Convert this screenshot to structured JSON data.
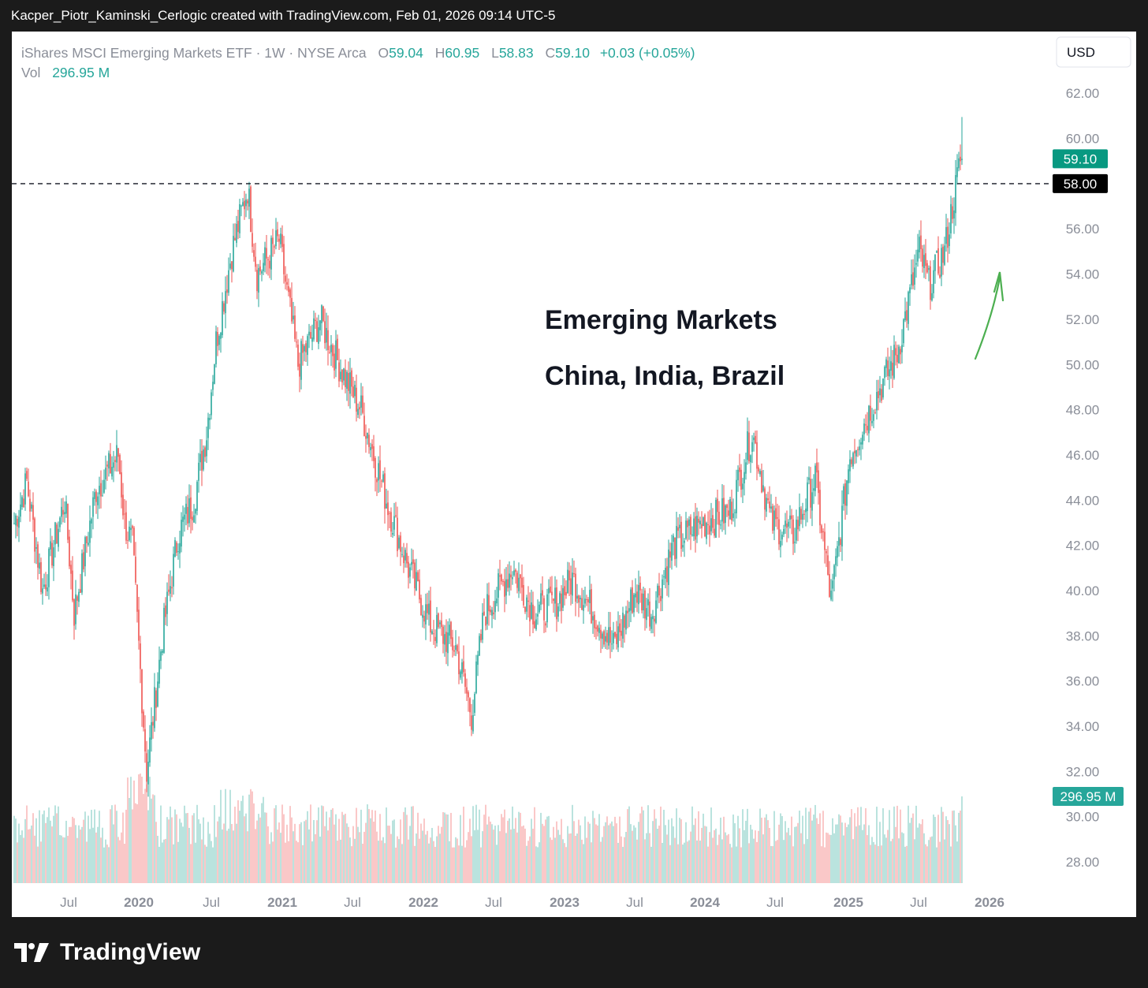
{
  "header": {
    "caption": "Kacper_Piotr_Kaminski_Cerlogic created with TradingView.com, Feb 01, 2026 09:14 UTC-5"
  },
  "legend": {
    "symbol": "iShares MSCI Emerging Markets ETF · 1W · NYSE Arca",
    "o_label": "O",
    "o_value": "59.04",
    "h_label": "H",
    "h_value": "60.95",
    "l_label": "L",
    "l_value": "58.83",
    "c_label": "C",
    "c_value": "59.10",
    "change": "+0.03 (+0.05%)",
    "vol_label": "Vol",
    "vol_value": "296.95 M"
  },
  "currency": "USD",
  "annotations": {
    "line1": "Emerging Markets",
    "line2": "China, India, Brazil"
  },
  "price_tags": {
    "last": "59.10",
    "line": "58.00",
    "volume": "296.95 M"
  },
  "footer": {
    "brand": "TradingView"
  },
  "colors": {
    "up": "#26a69a",
    "down": "#ef5350",
    "arrow": "#4caf50",
    "text_dark": "#131722",
    "axis_text": "#8a8e98"
  },
  "chart_data": {
    "type": "candlestick",
    "ylim": [
      27,
      63
    ],
    "yticks": [
      "62.00",
      "60.00",
      "58.00",
      "56.00",
      "54.00",
      "52.00",
      "50.00",
      "48.00",
      "46.00",
      "44.00",
      "42.00",
      "40.00",
      "38.00",
      "36.00",
      "34.00",
      "32.00",
      "30.00",
      "28.00"
    ],
    "xticks": [
      "Jul",
      "2020",
      "Jul",
      "2021",
      "Jul",
      "2022",
      "Jul",
      "2023",
      "Jul",
      "2024",
      "Jul",
      "2025",
      "Jul",
      "2026"
    ],
    "horizontal_line": 58.0,
    "anchors": [
      [
        0,
        43
      ],
      [
        8,
        44.8
      ],
      [
        18,
        40
      ],
      [
        32,
        44
      ],
      [
        38,
        39
      ],
      [
        52,
        44.5
      ],
      [
        66,
        46
      ],
      [
        70,
        43
      ],
      [
        75,
        42
      ],
      [
        84,
        32
      ],
      [
        94,
        38
      ],
      [
        104,
        42.5
      ],
      [
        114,
        44
      ],
      [
        122,
        47
      ],
      [
        128,
        51
      ],
      [
        138,
        55
      ],
      [
        148,
        57.8
      ],
      [
        154,
        54
      ],
      [
        168,
        55.5
      ],
      [
        180,
        50
      ],
      [
        194,
        52
      ],
      [
        206,
        50
      ],
      [
        220,
        48
      ],
      [
        236,
        44
      ],
      [
        250,
        41
      ],
      [
        264,
        38.5
      ],
      [
        280,
        37.5
      ],
      [
        290,
        34.5
      ],
      [
        298,
        39
      ],
      [
        316,
        41
      ],
      [
        330,
        39
      ],
      [
        344,
        39.5
      ],
      [
        354,
        40.5
      ],
      [
        368,
        39
      ],
      [
        380,
        37.5
      ],
      [
        394,
        40
      ],
      [
        404,
        39
      ],
      [
        418,
        42
      ],
      [
        436,
        43
      ],
      [
        454,
        43.5
      ],
      [
        468,
        47
      ],
      [
        480,
        43
      ],
      [
        494,
        42.5
      ],
      [
        508,
        45
      ],
      [
        518,
        39.5
      ],
      [
        530,
        46
      ],
      [
        546,
        48.5
      ],
      [
        560,
        50.5
      ],
      [
        574,
        55
      ],
      [
        580,
        53.5
      ],
      [
        590,
        55
      ],
      [
        600,
        59.04
      ],
      [
        601,
        59.1
      ]
    ],
    "last_bar": {
      "open": 59.04,
      "high": 60.95,
      "low": 58.83,
      "close": 59.1,
      "volume": "296.95 M"
    }
  }
}
